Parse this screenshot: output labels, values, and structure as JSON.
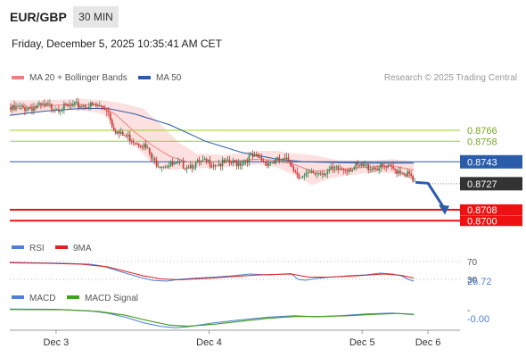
{
  "header": {
    "symbol": "EUR/GBP",
    "timeframe": "30 MIN",
    "datetime": "Friday, December 5, 2025 10:35:41 AM CET",
    "copyright": "Research © 2025 Trading Central"
  },
  "colors": {
    "ma20": "#f08080",
    "ma50": "#2a5caa",
    "bands": "#fde0e0",
    "green_level": "#9acd32",
    "blue_level": "#2a5caa",
    "red_level": "#ee1111",
    "rsi": "#4f7fd6",
    "rsi_ma": "#dd2222",
    "macd": "#4f7fd6",
    "macd_signal": "#44a022",
    "candle_up": "#2e8b57",
    "candle_down": "#cc3333",
    "arrow": "#2a5caa"
  },
  "chart_data": [
    {
      "type": "candlestick",
      "legend": [
        "MA 20 + Bollinger Bands",
        "MA 50"
      ],
      "ylim": [
        0.8693,
        0.8796
      ],
      "levels": [
        {
          "value": 0.8766,
          "label": "0.8766",
          "style": "green"
        },
        {
          "value": 0.8758,
          "label": "0.8758",
          "style": "green"
        },
        {
          "value": 0.8743,
          "label": "0.8743",
          "style": "blue"
        },
        {
          "value": 0.8727,
          "label": "0.8727",
          "style": "dark"
        },
        {
          "value": 0.8708,
          "label": "0.8708",
          "style": "red"
        },
        {
          "value": 0.87,
          "label": "0.8700",
          "style": "red"
        }
      ],
      "close_path": [
        [
          0,
          0.8783
        ],
        [
          10,
          0.8784
        ],
        [
          20,
          0.8785
        ],
        [
          30,
          0.8784
        ],
        [
          40,
          0.8786
        ],
        [
          50,
          0.8785
        ],
        [
          55,
          0.8783
        ],
        [
          58,
          0.877
        ],
        [
          62,
          0.8764
        ],
        [
          66,
          0.8763
        ],
        [
          70,
          0.876
        ],
        [
          74,
          0.8758
        ],
        [
          78,
          0.8752
        ],
        [
          80,
          0.8745
        ],
        [
          84,
          0.8743
        ],
        [
          90,
          0.8742
        ],
        [
          100,
          0.8742
        ],
        [
          110,
          0.8744
        ],
        [
          120,
          0.8743
        ],
        [
          130,
          0.8744
        ],
        [
          135,
          0.8748
        ],
        [
          140,
          0.8747
        ],
        [
          145,
          0.8744
        ],
        [
          150,
          0.8745
        ],
        [
          158,
          0.8745
        ],
        [
          160,
          0.8738
        ],
        [
          165,
          0.8733
        ],
        [
          170,
          0.8736
        ],
        [
          175,
          0.8737
        ],
        [
          180,
          0.8738
        ],
        [
          190,
          0.874
        ],
        [
          200,
          0.8741
        ],
        [
          210,
          0.874
        ],
        [
          220,
          0.8738
        ],
        [
          225,
          0.8734
        ],
        [
          227,
          0.8729
        ]
      ],
      "ma20": [
        [
          0,
          0.8781
        ],
        [
          20,
          0.8784
        ],
        [
          40,
          0.8785
        ],
        [
          52,
          0.8784
        ],
        [
          60,
          0.8777
        ],
        [
          70,
          0.8765
        ],
        [
          80,
          0.8755
        ],
        [
          90,
          0.8747
        ],
        [
          100,
          0.8743
        ],
        [
          120,
          0.8743
        ],
        [
          140,
          0.8745
        ],
        [
          150,
          0.8744
        ],
        [
          160,
          0.8741
        ],
        [
          170,
          0.8736
        ],
        [
          180,
          0.8737
        ],
        [
          200,
          0.8739
        ],
        [
          215,
          0.874
        ],
        [
          227,
          0.8737
        ]
      ],
      "ma50": [
        [
          0,
          0.8777
        ],
        [
          20,
          0.878
        ],
        [
          40,
          0.8782
        ],
        [
          55,
          0.8782
        ],
        [
          70,
          0.8778
        ],
        [
          90,
          0.877
        ],
        [
          110,
          0.8758
        ],
        [
          130,
          0.875
        ],
        [
          150,
          0.8745
        ],
        [
          165,
          0.8743
        ],
        [
          200,
          0.8742
        ],
        [
          227,
          0.8742
        ]
      ],
      "bb_upper": [
        [
          0,
          0.8788
        ],
        [
          20,
          0.8788
        ],
        [
          40,
          0.8789
        ],
        [
          52,
          0.8788
        ],
        [
          62,
          0.8786
        ],
        [
          75,
          0.8782
        ],
        [
          85,
          0.877
        ],
        [
          95,
          0.8757
        ],
        [
          105,
          0.8749
        ],
        [
          120,
          0.8748
        ],
        [
          140,
          0.8751
        ],
        [
          150,
          0.8751
        ],
        [
          160,
          0.8749
        ],
        [
          170,
          0.8748
        ],
        [
          185,
          0.8744
        ],
        [
          205,
          0.8744
        ],
        [
          215,
          0.8745
        ],
        [
          227,
          0.8743
        ]
      ],
      "bb_lower": [
        [
          0,
          0.8776
        ],
        [
          20,
          0.878
        ],
        [
          40,
          0.8781
        ],
        [
          52,
          0.8778
        ],
        [
          60,
          0.8768
        ],
        [
          70,
          0.8755
        ],
        [
          80,
          0.8742
        ],
        [
          90,
          0.8737
        ],
        [
          100,
          0.8738
        ],
        [
          120,
          0.8739
        ],
        [
          140,
          0.8741
        ],
        [
          150,
          0.8739
        ],
        [
          160,
          0.8733
        ],
        [
          170,
          0.8726
        ],
        [
          180,
          0.8731
        ],
        [
          200,
          0.8735
        ],
        [
          215,
          0.8735
        ],
        [
          227,
          0.8731
        ]
      ],
      "projection": {
        "from": [
          228,
          0.8728
        ],
        "to": [
          245,
          0.8705
        ]
      }
    },
    {
      "type": "line",
      "legend": [
        "RSI",
        "9MA"
      ],
      "ylim": [
        20,
        80
      ],
      "y_labels": [
        {
          "value": 70,
          "label": "70"
        },
        {
          "value": 30,
          "label": "30"
        }
      ],
      "current": {
        "value": 25.72,
        "label": "25.72"
      },
      "rsi": [
        [
          0,
          68
        ],
        [
          15,
          67
        ],
        [
          30,
          66
        ],
        [
          45,
          64
        ],
        [
          52,
          60
        ],
        [
          60,
          50
        ],
        [
          65,
          44
        ],
        [
          72,
          36
        ],
        [
          80,
          28
        ],
        [
          88,
          26
        ],
        [
          95,
          30
        ],
        [
          105,
          33
        ],
        [
          115,
          35
        ],
        [
          125,
          38
        ],
        [
          135,
          42
        ],
        [
          145,
          40
        ],
        [
          158,
          43
        ],
        [
          162,
          30
        ],
        [
          166,
          28
        ],
        [
          172,
          32
        ],
        [
          180,
          35
        ],
        [
          190,
          38
        ],
        [
          200,
          40
        ],
        [
          208,
          44
        ],
        [
          215,
          42
        ],
        [
          220,
          38
        ],
        [
          224,
          30
        ],
        [
          227,
          26
        ]
      ],
      "rsi_ma": [
        [
          0,
          67
        ],
        [
          20,
          66
        ],
        [
          40,
          64
        ],
        [
          55,
          58
        ],
        [
          65,
          48
        ],
        [
          75,
          38
        ],
        [
          85,
          31
        ],
        [
          95,
          29
        ],
        [
          110,
          32
        ],
        [
          125,
          36
        ],
        [
          140,
          40
        ],
        [
          158,
          42
        ],
        [
          168,
          35
        ],
        [
          180,
          35
        ],
        [
          195,
          38
        ],
        [
          210,
          42
        ],
        [
          220,
          39
        ],
        [
          227,
          33
        ]
      ]
    },
    {
      "type": "line",
      "legend": [
        "MACD",
        "MACD Signal"
      ],
      "ylim": [
        -0.0006,
        0.0004
      ],
      "y_labels": [
        {
          "value": 0,
          "label": "-"
        }
      ],
      "current": {
        "value": 0.0,
        "label": "-0.00"
      },
      "macd": [
        [
          0,
          0.00025
        ],
        [
          25,
          0.00024
        ],
        [
          45,
          0.00018
        ],
        [
          55,
          8e-05
        ],
        [
          65,
          -8e-05
        ],
        [
          75,
          -0.0003
        ],
        [
          85,
          -0.00045
        ],
        [
          93,
          -0.0005
        ],
        [
          100,
          -0.00046
        ],
        [
          115,
          -0.0003
        ],
        [
          130,
          -0.00018
        ],
        [
          145,
          -8e-05
        ],
        [
          160,
          -2e-05
        ],
        [
          172,
          -6e-05
        ],
        [
          185,
          -2e-05
        ],
        [
          200,
          5e-05
        ],
        [
          215,
          9e-05
        ],
        [
          227,
          2e-05
        ]
      ],
      "macd_signal": [
        [
          0,
          0.00023
        ],
        [
          30,
          0.00022
        ],
        [
          50,
          0.00015
        ],
        [
          65,
          0.0
        ],
        [
          78,
          -0.00022
        ],
        [
          90,
          -0.0004
        ],
        [
          100,
          -0.00044
        ],
        [
          115,
          -0.00036
        ],
        [
          130,
          -0.00024
        ],
        [
          145,
          -0.00012
        ],
        [
          160,
          -5e-05
        ],
        [
          175,
          -5e-05
        ],
        [
          190,
          -2e-05
        ],
        [
          205,
          4e-05
        ],
        [
          218,
          7e-05
        ],
        [
          227,
          4e-05
        ]
      ]
    }
  ],
  "x_axis": {
    "range": [
      0,
      253
    ],
    "ticks": [
      {
        "index": 26,
        "label": "Dec 3"
      },
      {
        "index": 112,
        "label": "Dec 4"
      },
      {
        "index": 198,
        "label": "Dec 5"
      },
      {
        "index": 235,
        "label": "Dec 6"
      }
    ]
  }
}
